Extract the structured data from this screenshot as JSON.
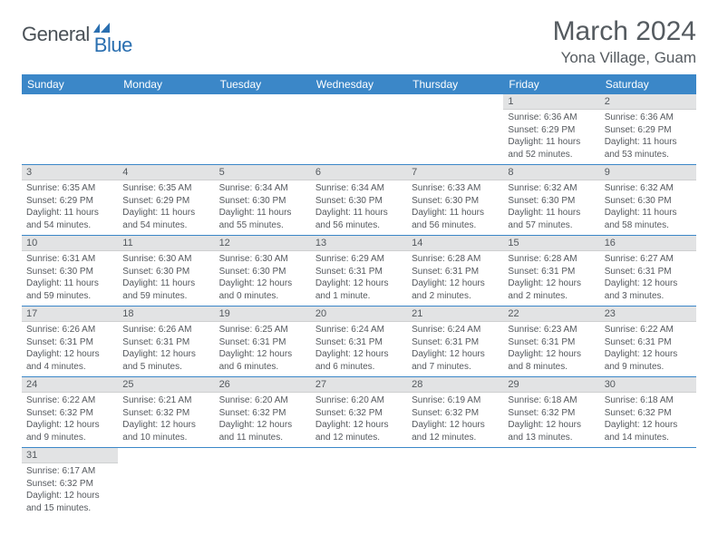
{
  "logo": {
    "text1": "General",
    "text2": "Blue"
  },
  "title": "March 2024",
  "location": "Yona Village, Guam",
  "colors": {
    "header_bg": "#3b87c8",
    "header_text": "#ffffff",
    "daynum_bg": "#e2e3e4",
    "cell_border": "#3b87c8",
    "body_text": "#55595e",
    "logo_gray": "#4a5157",
    "logo_blue": "#2a6fb0"
  },
  "weekdays": [
    "Sunday",
    "Monday",
    "Tuesday",
    "Wednesday",
    "Thursday",
    "Friday",
    "Saturday"
  ],
  "weeks": [
    [
      null,
      null,
      null,
      null,
      null,
      {
        "n": "1",
        "sr": "Sunrise: 6:36 AM",
        "ss": "Sunset: 6:29 PM",
        "dl": "Daylight: 11 hours and 52 minutes."
      },
      {
        "n": "2",
        "sr": "Sunrise: 6:36 AM",
        "ss": "Sunset: 6:29 PM",
        "dl": "Daylight: 11 hours and 53 minutes."
      }
    ],
    [
      {
        "n": "3",
        "sr": "Sunrise: 6:35 AM",
        "ss": "Sunset: 6:29 PM",
        "dl": "Daylight: 11 hours and 54 minutes."
      },
      {
        "n": "4",
        "sr": "Sunrise: 6:35 AM",
        "ss": "Sunset: 6:29 PM",
        "dl": "Daylight: 11 hours and 54 minutes."
      },
      {
        "n": "5",
        "sr": "Sunrise: 6:34 AM",
        "ss": "Sunset: 6:30 PM",
        "dl": "Daylight: 11 hours and 55 minutes."
      },
      {
        "n": "6",
        "sr": "Sunrise: 6:34 AM",
        "ss": "Sunset: 6:30 PM",
        "dl": "Daylight: 11 hours and 56 minutes."
      },
      {
        "n": "7",
        "sr": "Sunrise: 6:33 AM",
        "ss": "Sunset: 6:30 PM",
        "dl": "Daylight: 11 hours and 56 minutes."
      },
      {
        "n": "8",
        "sr": "Sunrise: 6:32 AM",
        "ss": "Sunset: 6:30 PM",
        "dl": "Daylight: 11 hours and 57 minutes."
      },
      {
        "n": "9",
        "sr": "Sunrise: 6:32 AM",
        "ss": "Sunset: 6:30 PM",
        "dl": "Daylight: 11 hours and 58 minutes."
      }
    ],
    [
      {
        "n": "10",
        "sr": "Sunrise: 6:31 AM",
        "ss": "Sunset: 6:30 PM",
        "dl": "Daylight: 11 hours and 59 minutes."
      },
      {
        "n": "11",
        "sr": "Sunrise: 6:30 AM",
        "ss": "Sunset: 6:30 PM",
        "dl": "Daylight: 11 hours and 59 minutes."
      },
      {
        "n": "12",
        "sr": "Sunrise: 6:30 AM",
        "ss": "Sunset: 6:30 PM",
        "dl": "Daylight: 12 hours and 0 minutes."
      },
      {
        "n": "13",
        "sr": "Sunrise: 6:29 AM",
        "ss": "Sunset: 6:31 PM",
        "dl": "Daylight: 12 hours and 1 minute."
      },
      {
        "n": "14",
        "sr": "Sunrise: 6:28 AM",
        "ss": "Sunset: 6:31 PM",
        "dl": "Daylight: 12 hours and 2 minutes."
      },
      {
        "n": "15",
        "sr": "Sunrise: 6:28 AM",
        "ss": "Sunset: 6:31 PM",
        "dl": "Daylight: 12 hours and 2 minutes."
      },
      {
        "n": "16",
        "sr": "Sunrise: 6:27 AM",
        "ss": "Sunset: 6:31 PM",
        "dl": "Daylight: 12 hours and 3 minutes."
      }
    ],
    [
      {
        "n": "17",
        "sr": "Sunrise: 6:26 AM",
        "ss": "Sunset: 6:31 PM",
        "dl": "Daylight: 12 hours and 4 minutes."
      },
      {
        "n": "18",
        "sr": "Sunrise: 6:26 AM",
        "ss": "Sunset: 6:31 PM",
        "dl": "Daylight: 12 hours and 5 minutes."
      },
      {
        "n": "19",
        "sr": "Sunrise: 6:25 AM",
        "ss": "Sunset: 6:31 PM",
        "dl": "Daylight: 12 hours and 6 minutes."
      },
      {
        "n": "20",
        "sr": "Sunrise: 6:24 AM",
        "ss": "Sunset: 6:31 PM",
        "dl": "Daylight: 12 hours and 6 minutes."
      },
      {
        "n": "21",
        "sr": "Sunrise: 6:24 AM",
        "ss": "Sunset: 6:31 PM",
        "dl": "Daylight: 12 hours and 7 minutes."
      },
      {
        "n": "22",
        "sr": "Sunrise: 6:23 AM",
        "ss": "Sunset: 6:31 PM",
        "dl": "Daylight: 12 hours and 8 minutes."
      },
      {
        "n": "23",
        "sr": "Sunrise: 6:22 AM",
        "ss": "Sunset: 6:31 PM",
        "dl": "Daylight: 12 hours and 9 minutes."
      }
    ],
    [
      {
        "n": "24",
        "sr": "Sunrise: 6:22 AM",
        "ss": "Sunset: 6:32 PM",
        "dl": "Daylight: 12 hours and 9 minutes."
      },
      {
        "n": "25",
        "sr": "Sunrise: 6:21 AM",
        "ss": "Sunset: 6:32 PM",
        "dl": "Daylight: 12 hours and 10 minutes."
      },
      {
        "n": "26",
        "sr": "Sunrise: 6:20 AM",
        "ss": "Sunset: 6:32 PM",
        "dl": "Daylight: 12 hours and 11 minutes."
      },
      {
        "n": "27",
        "sr": "Sunrise: 6:20 AM",
        "ss": "Sunset: 6:32 PM",
        "dl": "Daylight: 12 hours and 12 minutes."
      },
      {
        "n": "28",
        "sr": "Sunrise: 6:19 AM",
        "ss": "Sunset: 6:32 PM",
        "dl": "Daylight: 12 hours and 12 minutes."
      },
      {
        "n": "29",
        "sr": "Sunrise: 6:18 AM",
        "ss": "Sunset: 6:32 PM",
        "dl": "Daylight: 12 hours and 13 minutes."
      },
      {
        "n": "30",
        "sr": "Sunrise: 6:18 AM",
        "ss": "Sunset: 6:32 PM",
        "dl": "Daylight: 12 hours and 14 minutes."
      }
    ],
    [
      {
        "n": "31",
        "sr": "Sunrise: 6:17 AM",
        "ss": "Sunset: 6:32 PM",
        "dl": "Daylight: 12 hours and 15 minutes."
      },
      null,
      null,
      null,
      null,
      null,
      null
    ]
  ]
}
